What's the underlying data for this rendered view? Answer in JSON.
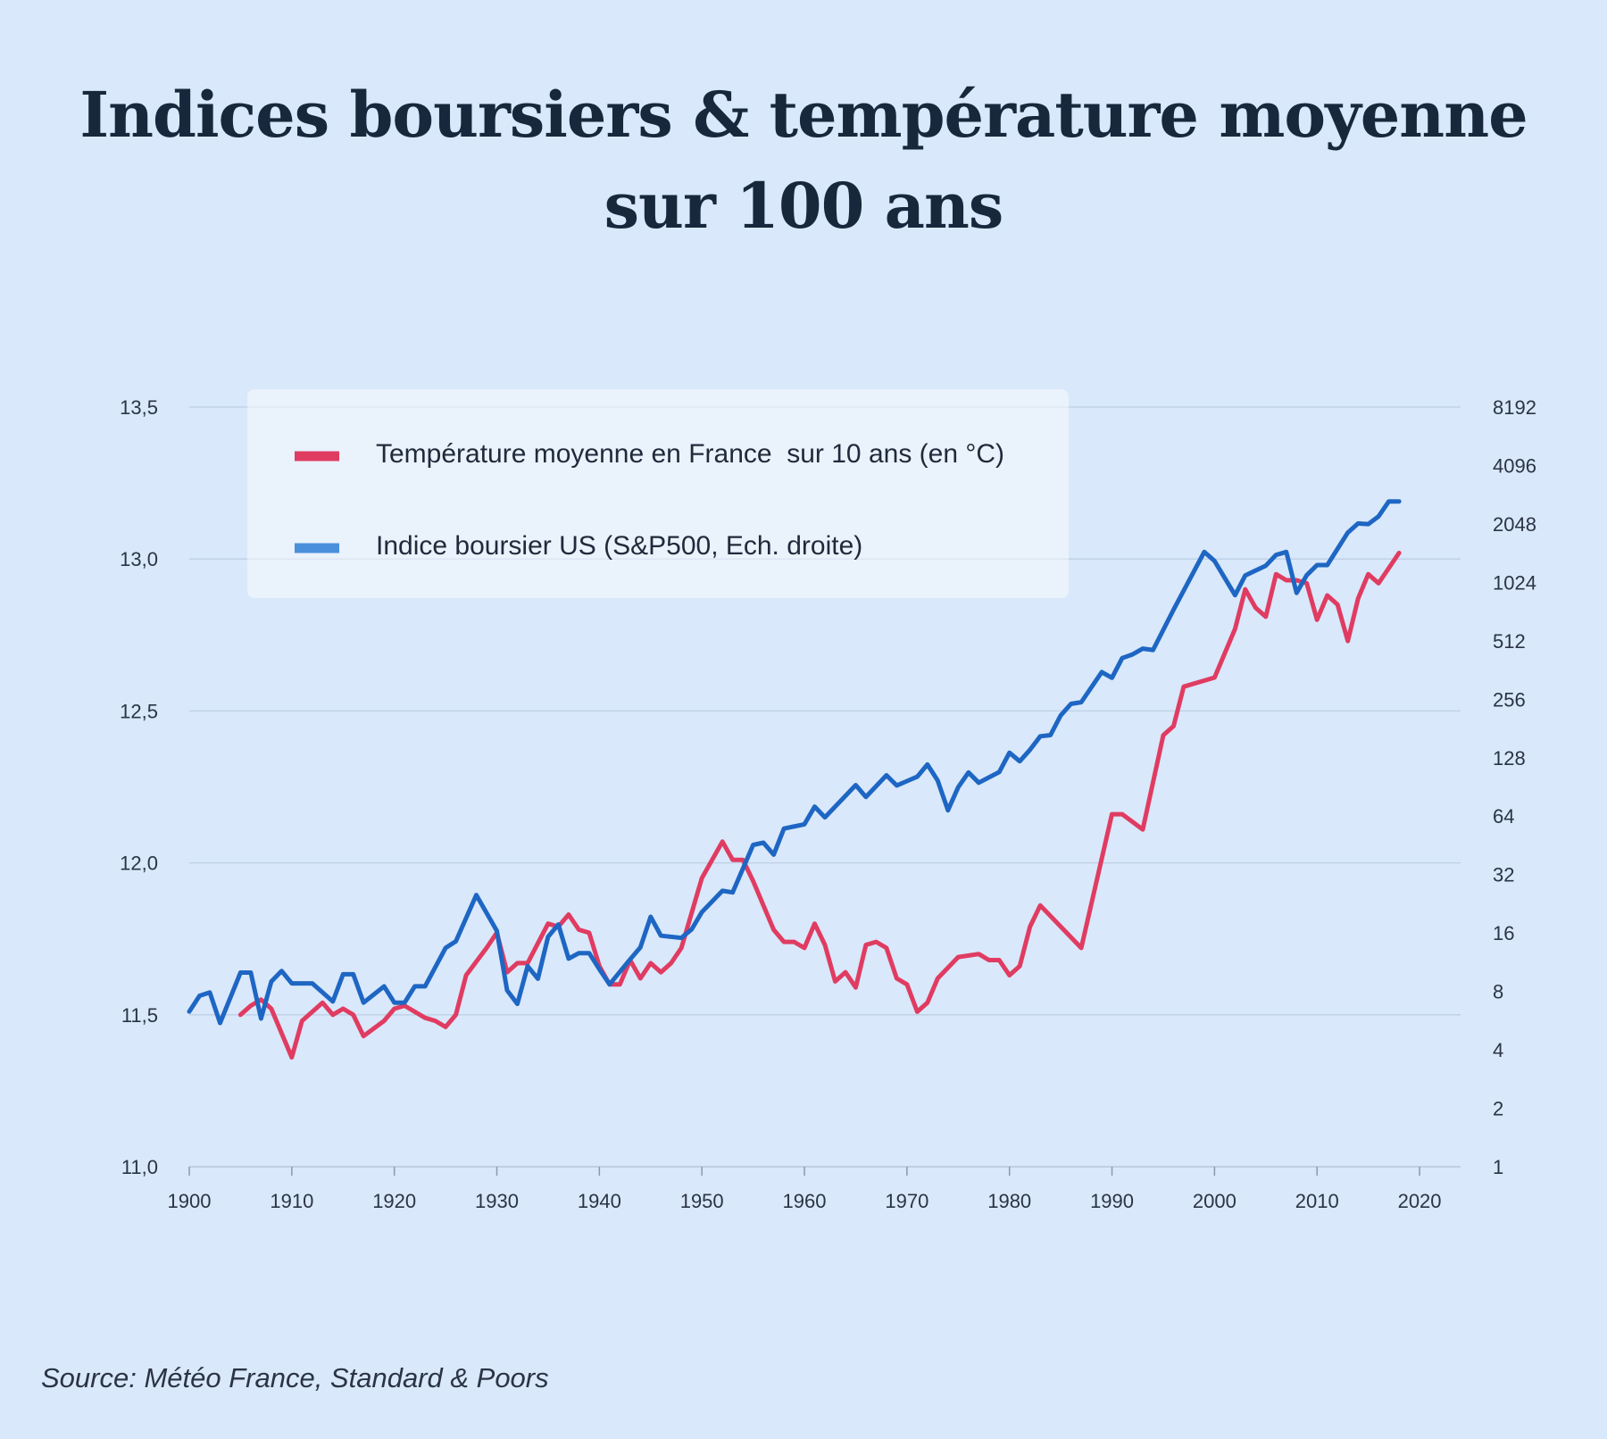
{
  "title_line1": "Indices boursiers & température moyenne",
  "title_line2": "sur 100 ans",
  "source": "Source: Météo France, Standard & Poors",
  "colors": {
    "temperature": "#e03c62",
    "sp500": "#1e66c3",
    "background": "#d9e8fa",
    "grid": "#bfd0e6"
  },
  "chart_data": {
    "type": "line",
    "title": "Indices boursiers & température moyenne sur 100 ans",
    "xlabel": "",
    "ylabel": "",
    "y2label": "",
    "xlim": [
      1900,
      2024
    ],
    "x_ticks": [
      1900,
      1910,
      1920,
      1930,
      1940,
      1950,
      1960,
      1970,
      1980,
      1990,
      2000,
      2010,
      2020
    ],
    "x_tick_labels": [
      "1900",
      "1910",
      "1920",
      "1930",
      "1940",
      "1950",
      "1960",
      "1970",
      "1980",
      "1990",
      "2000",
      "2010",
      "2020"
    ],
    "ylim": [
      11.0,
      13.5
    ],
    "y_ticks": [
      11.0,
      11.5,
      12.0,
      12.5,
      13.0,
      13.5
    ],
    "y_tick_labels": [
      "11,0",
      "11,5",
      "12,0",
      "12,5",
      "13,0",
      "13,5"
    ],
    "y2_scale": "log2",
    "y2lim": [
      1,
      8192
    ],
    "y2_ticks": [
      1,
      2,
      4,
      8,
      16,
      32,
      64,
      128,
      256,
      512,
      1024,
      2048,
      4096,
      8192
    ],
    "y2_tick_labels": [
      "1",
      "2",
      "4",
      "8",
      "16",
      "32",
      "64",
      "128",
      "256",
      "512",
      "1024",
      "2048",
      "4096",
      "8192"
    ],
    "legend_position": "top-left",
    "grid": true,
    "series": [
      {
        "name": "Température moyenne en France  sur 10 ans (en °C)",
        "axis": "left",
        "color": "#e03c62",
        "x": [
          1905,
          1906,
          1907,
          1908,
          1910,
          1911,
          1913,
          1914,
          1915,
          1916,
          1917,
          1919,
          1920,
          1921,
          1923,
          1924,
          1925,
          1926,
          1927,
          1929,
          1930,
          1931,
          1932,
          1933,
          1935,
          1936,
          1937,
          1938,
          1939,
          1940,
          1941,
          1942,
          1943,
          1944,
          1945,
          1946,
          1947,
          1948,
          1950,
          1952,
          1953,
          1954,
          1955,
          1957,
          1958,
          1959,
          1960,
          1961,
          1962,
          1963,
          1964,
          1965,
          1966,
          1967,
          1968,
          1969,
          1970,
          1971,
          1972,
          1973,
          1975,
          1977,
          1978,
          1979,
          1980,
          1981,
          1982,
          1983,
          1987,
          1990,
          1991,
          1993,
          1995,
          1996,
          1997,
          2000,
          2002,
          2003,
          2004,
          2005,
          2006,
          2007,
          2008,
          2009,
          2010,
          2011,
          2012,
          2013,
          2014,
          2015,
          2016,
          2018
        ],
        "values": [
          11.5,
          11.53,
          11.55,
          11.52,
          11.36,
          11.48,
          11.54,
          11.5,
          11.52,
          11.5,
          11.43,
          11.48,
          11.52,
          11.53,
          11.49,
          11.48,
          11.46,
          11.5,
          11.63,
          11.72,
          11.77,
          11.64,
          11.67,
          11.67,
          11.8,
          11.79,
          11.83,
          11.78,
          11.77,
          11.66,
          11.6,
          11.6,
          11.68,
          11.62,
          11.67,
          11.64,
          11.67,
          11.72,
          11.95,
          12.07,
          12.01,
          12.01,
          11.94,
          11.78,
          11.74,
          11.74,
          11.72,
          11.8,
          11.73,
          11.61,
          11.64,
          11.59,
          11.73,
          11.74,
          11.72,
          11.62,
          11.6,
          11.51,
          11.54,
          11.62,
          11.69,
          11.7,
          11.68,
          11.68,
          11.63,
          11.66,
          11.79,
          11.86,
          11.72,
          12.16,
          12.16,
          12.11,
          12.42,
          12.45,
          12.58,
          12.61,
          12.77,
          12.9,
          12.84,
          12.81,
          12.95,
          12.93,
          12.93,
          12.92,
          12.8,
          12.88,
          12.85,
          12.73,
          12.87,
          12.95,
          12.92,
          13.02
        ]
      },
      {
        "name": "Indice boursier US (S&P500, Ech. droite)",
        "axis": "right",
        "color": "#1e66c3",
        "x": [
          1900,
          1901,
          1902,
          1903,
          1905,
          1906,
          1907,
          1908,
          1909,
          1910,
          1912,
          1914,
          1915,
          1916,
          1917,
          1919,
          1920,
          1921,
          1922,
          1923,
          1925,
          1926,
          1928,
          1930,
          1931,
          1932,
          1933,
          1934,
          1935,
          1936,
          1937,
          1938,
          1939,
          1940,
          1941,
          1943,
          1944,
          1945,
          1946,
          1948,
          1949,
          1950,
          1952,
          1953,
          1955,
          1956,
          1957,
          1958,
          1960,
          1961,
          1962,
          1965,
          1966,
          1968,
          1969,
          1971,
          1972,
          1973,
          1974,
          1975,
          1976,
          1977,
          1979,
          1980,
          1981,
          1982,
          1983,
          1984,
          1985,
          1986,
          1987,
          1989,
          1990,
          1991,
          1992,
          1993,
          1994,
          1996,
          1999,
          2000,
          2002,
          2003,
          2005,
          2006,
          2007,
          2008,
          2009,
          2010,
          2011,
          2013,
          2014,
          2015,
          2016,
          2017,
          2018
        ],
        "values": [
          6.3,
          7.6,
          7.9,
          5.5,
          10,
          10,
          5.8,
          9,
          10.2,
          8.8,
          8.8,
          7.1,
          9.8,
          9.8,
          7,
          8.5,
          7,
          7,
          8.5,
          8.5,
          13.4,
          14.5,
          25.1,
          16.4,
          8.1,
          6.9,
          10.8,
          9.3,
          15.3,
          17.7,
          11.8,
          12.6,
          12.6,
          10.4,
          8.7,
          11.7,
          13.5,
          19.4,
          15.5,
          15.1,
          16.7,
          20.5,
          26.4,
          25.9,
          45.5,
          46.7,
          40.5,
          55.2,
          58.1,
          71.6,
          63.1,
          92.4,
          80.3,
          103.9,
          92.1,
          102.1,
          118.1,
          97.6,
          68.6,
          90.2,
          107.5,
          95.1,
          107.9,
          135.8,
          122.6,
          140.6,
          164.9,
          167.2,
          211.3,
          242.2,
          247.1,
          353.4,
          330.2,
          417.1,
          435.7,
          466.5,
          459.3,
          740.7,
          1469.3,
          1320.3,
          879.8,
          1111.9,
          1248.3,
          1418.3,
          1468.4,
          903.3,
          1115.1,
          1257.6,
          1257.6,
          1848.4,
          2058.9,
          2043.9,
          2238.8,
          2673.6,
          2673.6
        ]
      }
    ]
  }
}
